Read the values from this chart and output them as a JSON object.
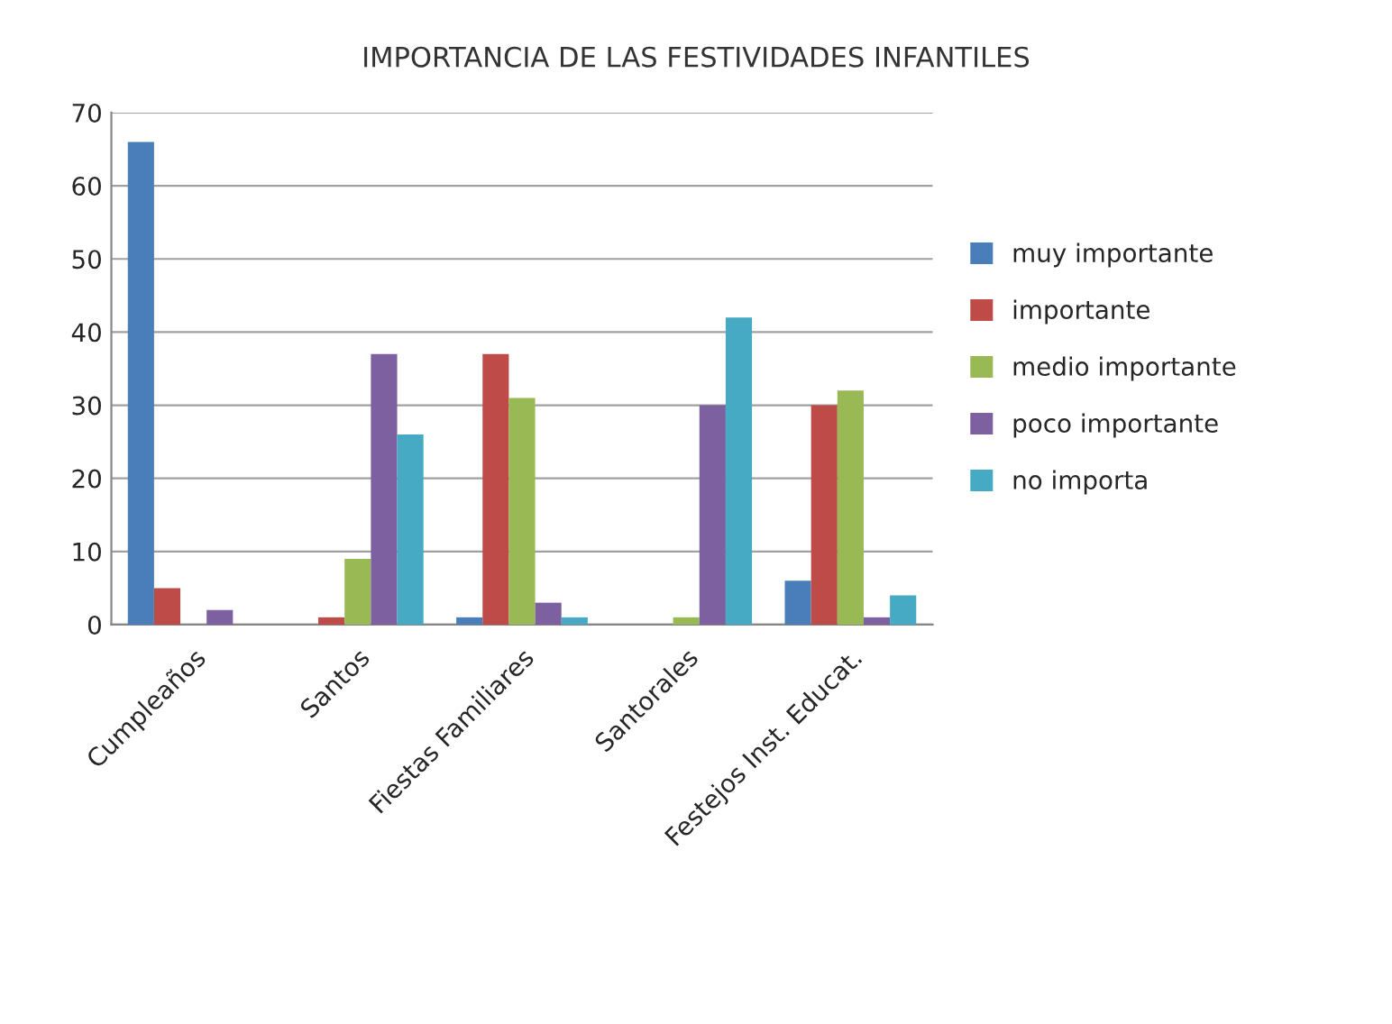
{
  "chart_data": {
    "type": "bar",
    "title": "IMPORTANCIA DE LAS FESTIVIDADES INFANTILES",
    "categories": [
      "Cumpleaños",
      "Santos",
      "Fiestas Familiares",
      "Santorales",
      "Festejos Inst. Educat."
    ],
    "series": [
      {
        "name": "muy importante",
        "color": "#4a7ebb",
        "values": [
          66,
          null,
          1,
          null,
          6
        ]
      },
      {
        "name": "importante",
        "color": "#be4b48",
        "values": [
          5,
          1,
          37,
          null,
          30
        ]
      },
      {
        "name": "medio importante",
        "color": "#98b954",
        "values": [
          null,
          9,
          31,
          1,
          32
        ]
      },
      {
        "name": "poco importante",
        "color": "#7d60a0",
        "values": [
          2,
          37,
          3,
          30,
          1
        ]
      },
      {
        "name": "no importa",
        "color": "#46aac5",
        "values": [
          null,
          26,
          1,
          42,
          4
        ]
      }
    ],
    "ylim": [
      0,
      70
    ],
    "yticks": [
      0,
      10,
      20,
      30,
      40,
      50,
      60,
      70
    ],
    "grid": "y",
    "legend": "right"
  }
}
